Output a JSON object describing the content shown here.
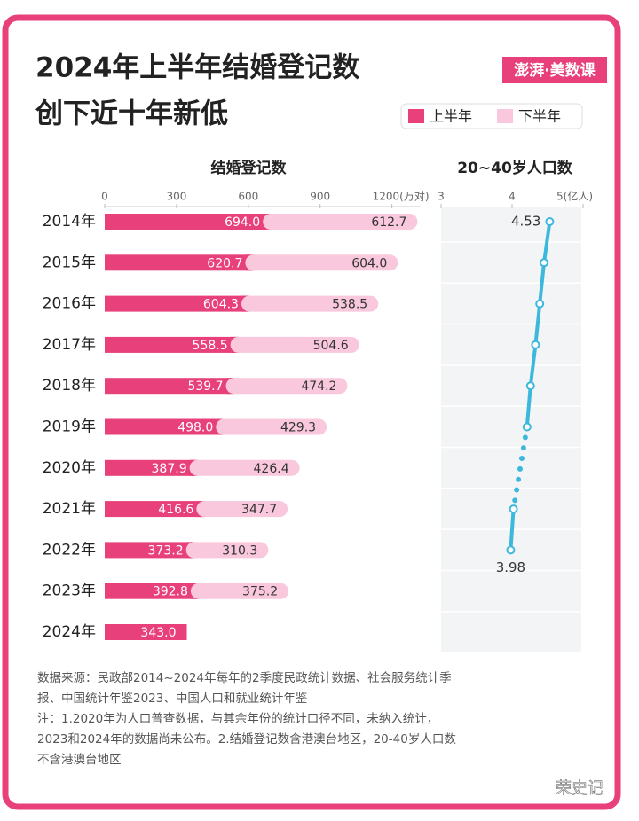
{
  "title": [
    "2024年上半年结婚登记数",
    "创下近十年新低"
  ],
  "logo": "澎湃·美数课",
  "chart_data": [
    {
      "type": "stacked-bar",
      "title": "结婚登记数",
      "categories": [
        "2014年",
        "2015年",
        "2016年",
        "2017年",
        "2018年",
        "2019年",
        "2020年",
        "2021年",
        "2022年",
        "2023年",
        "2024年"
      ],
      "series": [
        {
          "name": "上半年",
          "color": "#e8407a",
          "values": [
            694.0,
            620.7,
            604.3,
            558.5,
            539.7,
            498.0,
            387.9,
            416.6,
            373.2,
            392.8,
            343.0
          ],
          "value_labels": [
            "694.0",
            "620.7",
            "604.3",
            "558.5",
            "539.7",
            "498.0",
            "387.9",
            "416.6",
            "373.2",
            "392.8",
            "343.0"
          ]
        },
        {
          "name": "下半年",
          "color": "#f9c8dc",
          "values": [
            612.7,
            604.0,
            538.5,
            504.6,
            474.2,
            429.3,
            426.4,
            347.7,
            310.3,
            375.2,
            null
          ],
          "value_labels": [
            "612.7",
            "604.0",
            "538.5",
            "504.6",
            "474.2",
            "429.3",
            "426.4",
            "347.7",
            "310.3",
            "375.2",
            null
          ]
        }
      ],
      "xlim": [
        0,
        1320
      ],
      "xticks": [
        0,
        300,
        600,
        900,
        {
          "value": 1200,
          "label": "1200(万对)"
        }
      ]
    },
    {
      "type": "line",
      "title": "20~40岁人口数",
      "color": "#3bb8dc",
      "values": [
        4.53,
        4.45,
        4.39,
        4.33,
        4.26,
        4.21,
        null,
        4.02,
        3.98,
        null,
        null
      ],
      "xlim": [
        3,
        5
      ],
      "xticks": [
        3,
        4,
        {
          "value": 5,
          "label": "5(亿人)"
        }
      ]
    }
  ],
  "notes": [
    "数据来源：民政部2014~2024年每年的2季度民政统计数据、社会服务统计季",
    "报、中国统计年鉴2023、中国人口和就业统计年鉴",
    "注：1.2020年为人口普查数据，与其余年份的统计口径不同，未纳入统计，",
    "2023和2024年的数据尚未公布。2.结婚登记数含港澳台地区，20-40岁人口数",
    "不含港澳台地区"
  ],
  "watermark": "荣史记"
}
